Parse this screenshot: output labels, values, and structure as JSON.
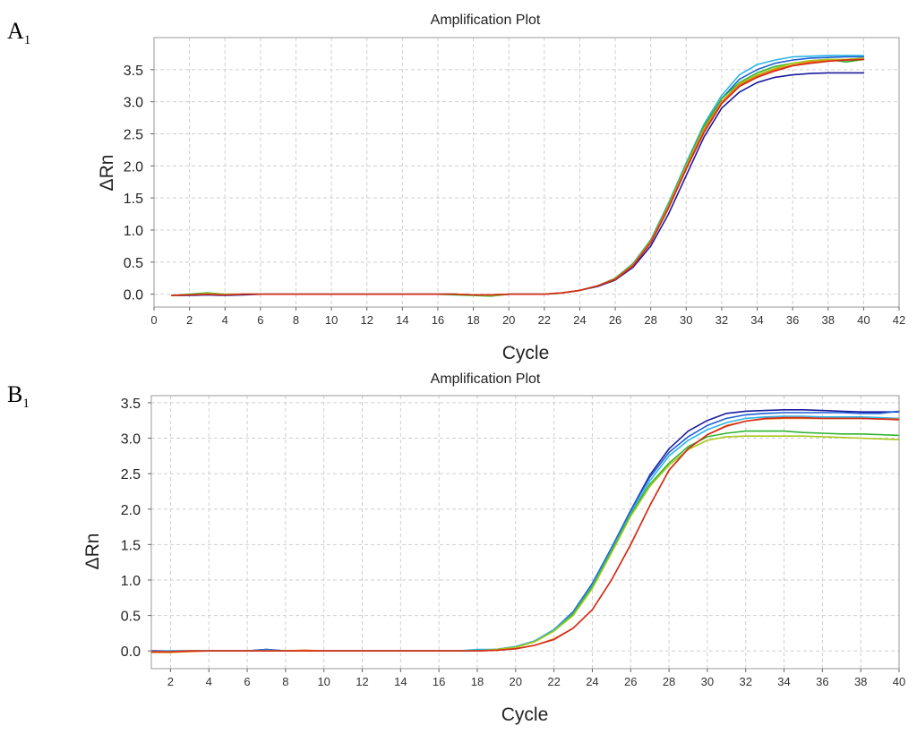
{
  "panels": [
    {
      "label": "A",
      "label_sub": "1"
    },
    {
      "label": "B",
      "label_sub": "1"
    }
  ],
  "chart_data": [
    {
      "type": "line",
      "title": "Amplification Plot",
      "xlabel": "Cycle",
      "ylabel": "ΔRn",
      "xlim": [
        0,
        42
      ],
      "ylim": [
        -0.2,
        4.0
      ],
      "xticks": [
        0,
        2,
        4,
        6,
        8,
        10,
        12,
        14,
        16,
        18,
        20,
        22,
        24,
        26,
        28,
        30,
        32,
        34,
        36,
        38,
        40,
        42
      ],
      "yticks": [
        0.0,
        0.5,
        1.0,
        1.5,
        2.0,
        2.5,
        3.0,
        3.5
      ],
      "x": [
        1,
        2,
        3,
        4,
        5,
        6,
        7,
        8,
        9,
        10,
        11,
        12,
        13,
        14,
        15,
        16,
        17,
        18,
        19,
        20,
        21,
        22,
        23,
        24,
        25,
        26,
        27,
        28,
        29,
        30,
        31,
        32,
        33,
        34,
        35,
        36,
        37,
        38,
        39,
        40
      ],
      "series": [
        {
          "name": "navy",
          "color": "#1a1a9e",
          "values": [
            -0.02,
            -0.02,
            -0.01,
            -0.02,
            -0.01,
            0,
            0,
            0,
            0,
            0,
            0,
            0,
            0,
            0,
            0,
            0,
            0,
            -0.01,
            -0.02,
            0,
            0,
            0,
            0.02,
            0.06,
            0.12,
            0.22,
            0.42,
            0.75,
            1.25,
            1.85,
            2.45,
            2.9,
            3.15,
            3.3,
            3.38,
            3.42,
            3.44,
            3.45,
            3.45,
            3.45
          ]
        },
        {
          "name": "cyan",
          "color": "#29b6e8",
          "values": [
            -0.02,
            -0.01,
            0,
            -0.01,
            0,
            0,
            0,
            0,
            0,
            0,
            0,
            0,
            0,
            0,
            0,
            0,
            0,
            -0.01,
            -0.01,
            0,
            0,
            0,
            0.02,
            0.06,
            0.13,
            0.25,
            0.48,
            0.85,
            1.42,
            2.05,
            2.65,
            3.1,
            3.42,
            3.58,
            3.65,
            3.7,
            3.71,
            3.72,
            3.72,
            3.72
          ]
        },
        {
          "name": "blue",
          "color": "#1f5fd6",
          "values": [
            -0.02,
            -0.01,
            0,
            -0.01,
            0,
            0,
            0,
            0,
            0,
            0,
            0,
            0,
            0,
            0,
            0,
            0,
            0,
            -0.01,
            -0.01,
            0,
            0,
            0,
            0.02,
            0.06,
            0.13,
            0.24,
            0.46,
            0.82,
            1.38,
            2.0,
            2.6,
            3.05,
            3.35,
            3.5,
            3.6,
            3.65,
            3.68,
            3.69,
            3.7,
            3.7
          ]
        },
        {
          "name": "green",
          "color": "#2fb52f",
          "values": [
            -0.02,
            0,
            0.02,
            0,
            0,
            0,
            0,
            0,
            0,
            0,
            0,
            0,
            0,
            0,
            0,
            0,
            -0.01,
            -0.02,
            -0.03,
            0,
            0,
            0,
            0.02,
            0.06,
            0.13,
            0.25,
            0.47,
            0.84,
            1.4,
            2.02,
            2.62,
            3.05,
            3.3,
            3.45,
            3.55,
            3.6,
            3.64,
            3.66,
            3.62,
            3.66
          ]
        },
        {
          "name": "yellow-green",
          "color": "#a8c81a",
          "values": [
            -0.02,
            -0.01,
            0.01,
            0,
            0,
            0,
            0,
            0,
            0,
            0,
            0,
            0,
            0,
            0,
            0,
            0,
            0,
            -0.01,
            -0.02,
            0,
            0,
            0,
            0.02,
            0.06,
            0.13,
            0.24,
            0.46,
            0.82,
            1.38,
            2.0,
            2.58,
            3.0,
            3.28,
            3.42,
            3.52,
            3.6,
            3.64,
            3.66,
            3.66,
            3.68
          ]
        },
        {
          "name": "orange",
          "color": "#f07a10",
          "values": [
            -0.02,
            -0.01,
            0,
            -0.01,
            0,
            0,
            0,
            0,
            0,
            0,
            0,
            0,
            0,
            0,
            0,
            0,
            0,
            -0.01,
            -0.01,
            0,
            0,
            0,
            0.02,
            0.06,
            0.13,
            0.24,
            0.46,
            0.82,
            1.37,
            1.98,
            2.56,
            3.0,
            3.26,
            3.4,
            3.5,
            3.57,
            3.62,
            3.64,
            3.65,
            3.66
          ]
        },
        {
          "name": "red",
          "color": "#d42a1a",
          "values": [
            -0.02,
            -0.01,
            0,
            -0.01,
            0,
            0,
            0,
            0,
            0,
            0,
            0,
            0,
            0,
            0,
            0,
            0,
            0,
            -0.01,
            -0.01,
            0,
            0,
            0,
            0.02,
            0.06,
            0.13,
            0.23,
            0.44,
            0.8,
            1.34,
            1.95,
            2.52,
            2.97,
            3.24,
            3.38,
            3.48,
            3.56,
            3.6,
            3.63,
            3.65,
            3.66
          ]
        }
      ]
    },
    {
      "type": "line",
      "title": "Amplification Plot",
      "xlabel": "Cycle",
      "ylabel": "ΔRn",
      "xlim": [
        1,
        40
      ],
      "ylim": [
        -0.25,
        3.6
      ],
      "xticks": [
        2,
        4,
        6,
        8,
        10,
        12,
        14,
        16,
        18,
        20,
        22,
        24,
        26,
        28,
        30,
        32,
        34,
        36,
        38,
        40
      ],
      "yticks": [
        0.0,
        0.5,
        1.0,
        1.5,
        2.0,
        2.5,
        3.0,
        3.5
      ],
      "x": [
        1,
        2,
        3,
        4,
        5,
        6,
        7,
        8,
        9,
        10,
        11,
        12,
        13,
        14,
        15,
        16,
        17,
        18,
        19,
        20,
        21,
        22,
        23,
        24,
        25,
        26,
        27,
        28,
        29,
        30,
        31,
        32,
        33,
        34,
        35,
        36,
        37,
        38,
        39,
        40
      ],
      "series": [
        {
          "name": "navy",
          "color": "#1a1a9e",
          "values": [
            0,
            0,
            0,
            0,
            0,
            0,
            0.02,
            0,
            0,
            0,
            0,
            0,
            0,
            0,
            0,
            0,
            0,
            0.01,
            0.02,
            0.06,
            0.14,
            0.3,
            0.55,
            0.95,
            1.45,
            1.98,
            2.48,
            2.85,
            3.1,
            3.25,
            3.35,
            3.38,
            3.39,
            3.4,
            3.4,
            3.39,
            3.38,
            3.37,
            3.37,
            3.37
          ]
        },
        {
          "name": "blue",
          "color": "#1f5fd6",
          "values": [
            -0.01,
            0,
            0,
            0,
            0,
            0,
            0.02,
            0,
            0,
            0,
            0,
            0,
            0,
            0,
            0,
            0,
            0,
            0.01,
            0.02,
            0.06,
            0.14,
            0.3,
            0.55,
            0.95,
            1.45,
            1.98,
            2.45,
            2.8,
            3.02,
            3.18,
            3.28,
            3.33,
            3.35,
            3.36,
            3.36,
            3.36,
            3.36,
            3.35,
            3.35,
            3.38
          ]
        },
        {
          "name": "cyan",
          "color": "#29b6e8",
          "values": [
            -0.01,
            0,
            0,
            0,
            0,
            0,
            0.01,
            0,
            0,
            0,
            0,
            0,
            0,
            0,
            0,
            0,
            0,
            0.02,
            0.02,
            0.06,
            0.14,
            0.3,
            0.53,
            0.92,
            1.42,
            1.94,
            2.4,
            2.75,
            2.97,
            3.12,
            3.22,
            3.28,
            3.3,
            3.31,
            3.31,
            3.3,
            3.3,
            3.3,
            3.29,
            3.28
          ]
        },
        {
          "name": "green",
          "color": "#2fb52f",
          "values": [
            -0.02,
            -0.01,
            0,
            0,
            0,
            0,
            0,
            0,
            0,
            0,
            0,
            0,
            0,
            0,
            0,
            0,
            0,
            0,
            0.02,
            0.05,
            0.13,
            0.28,
            0.52,
            0.9,
            1.4,
            1.92,
            2.35,
            2.65,
            2.88,
            3.02,
            3.07,
            3.1,
            3.1,
            3.1,
            3.08,
            3.07,
            3.06,
            3.06,
            3.05,
            3.04
          ]
        },
        {
          "name": "yellow-green",
          "color": "#a8c81a",
          "values": [
            -0.02,
            -0.02,
            0,
            0,
            0,
            0,
            0,
            0,
            0.01,
            0,
            0,
            0,
            0,
            0,
            0,
            0,
            0,
            0,
            0.02,
            0.05,
            0.13,
            0.28,
            0.5,
            0.88,
            1.38,
            1.9,
            2.32,
            2.62,
            2.84,
            2.97,
            3.02,
            3.03,
            3.03,
            3.03,
            3.03,
            3.02,
            3.01,
            3.0,
            2.99,
            2.98
          ]
        },
        {
          "name": "orange",
          "color": "#f07a10",
          "values": [
            -0.02,
            -0.02,
            -0.01,
            0,
            0,
            0,
            0,
            0,
            0.01,
            0,
            0,
            0,
            0,
            0,
            0,
            0,
            0,
            0,
            0.01,
            0.03,
            0.08,
            0.17,
            0.32,
            0.58,
            1.0,
            1.5,
            2.05,
            2.55,
            2.85,
            3.05,
            3.18,
            3.24,
            3.27,
            3.28,
            3.28,
            3.28,
            3.28,
            3.28,
            3.27,
            3.27
          ]
        },
        {
          "name": "red",
          "color": "#d42a1a",
          "values": [
            -0.01,
            -0.01,
            0,
            0,
            0,
            0,
            0,
            0,
            0,
            0,
            0,
            0,
            0,
            0,
            0,
            0,
            0,
            0,
            0.01,
            0.03,
            0.08,
            0.16,
            0.32,
            0.58,
            1.0,
            1.5,
            2.05,
            2.55,
            2.85,
            3.05,
            3.17,
            3.24,
            3.28,
            3.29,
            3.29,
            3.28,
            3.28,
            3.28,
            3.27,
            3.26
          ]
        }
      ]
    }
  ]
}
